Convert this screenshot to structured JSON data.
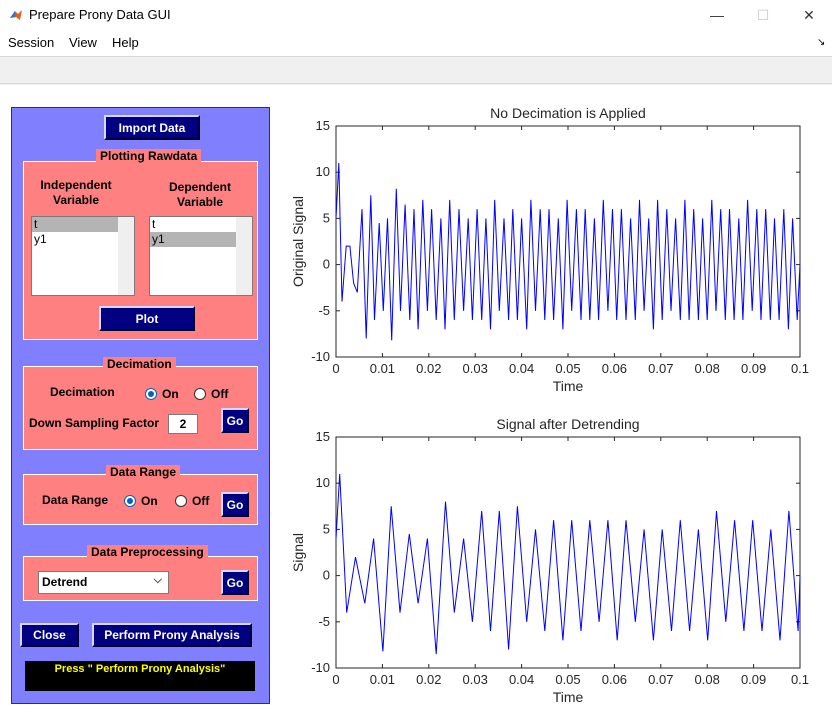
{
  "window": {
    "title": "Prepare Prony Data GUI",
    "minimize_glyph": "—",
    "maximize_glyph": "☐",
    "close_glyph": "✕",
    "dock_glyph": "↘"
  },
  "menu": [
    "Session",
    "View",
    "Help"
  ],
  "import_button": "Import Data",
  "plotting": {
    "title": "Plotting Rawdata",
    "independent_label_1": "Independent",
    "independent_label_2": "Variable",
    "dependent_label_1": "Dependent",
    "dependent_label_2": "Variable",
    "independent_list": [
      "t",
      "y1"
    ],
    "dependent_list": [
      "t",
      "y1"
    ],
    "independent_selected": "t",
    "dependent_selected": "y1",
    "plot_button": "Plot"
  },
  "decimation": {
    "title": "Decimation",
    "label": "Decimation",
    "on_label": "On",
    "off_label": "Off",
    "selected": "On",
    "factor_label": "Down Sampling Factor",
    "factor_value": "2",
    "go_button": "Go"
  },
  "data_range": {
    "title": "Data Range",
    "label": "Data Range",
    "on_label": "On",
    "off_label": "Off",
    "selected": "On",
    "go_button": "Go"
  },
  "preprocessing": {
    "title": "Data Preprocessing",
    "method": "Detrend",
    "go_button": "Go"
  },
  "close_button": "Close",
  "prony_button": "Perform Prony  Analysis",
  "status_message": "Press \" Perform Prony Analysis\"",
  "colors": {
    "panel": "#8080ff",
    "group": "#ff8080",
    "button": "#000080",
    "line": "#0000ff",
    "status_text": "#ffff00"
  },
  "chart_data": [
    {
      "type": "line",
      "title": "No Decimation is Applied",
      "xlabel": "Time",
      "ylabel": "Original Signal",
      "xlim": [
        0,
        0.1
      ],
      "ylim": [
        -10,
        15
      ],
      "xticks": [
        "0",
        "0.01",
        "0.02",
        "0.03",
        "0.04",
        "0.05",
        "0.06",
        "0.07",
        "0.08",
        "0.09",
        "0.1"
      ],
      "yticks": [
        "-10",
        "-5",
        "0",
        "5",
        "10",
        "15"
      ],
      "grid": false,
      "x": [
        0,
        0.0006,
        0.0013,
        0.0022,
        0.003,
        0.0038,
        0.0046,
        0.0056,
        0.0065,
        0.0075,
        0.0083,
        0.0093,
        0.0102,
        0.0111,
        0.012,
        0.013,
        0.0139,
        0.0149,
        0.0159,
        0.0168,
        0.0177,
        0.0187,
        0.0197,
        0.0206,
        0.0216,
        0.0226,
        0.0235,
        0.0245,
        0.0255,
        0.0265,
        0.0275,
        0.0285,
        0.0294,
        0.0304,
        0.0314,
        0.0323,
        0.0333,
        0.0342,
        0.0352,
        0.0362,
        0.0372,
        0.0381,
        0.0391,
        0.04,
        0.0411,
        0.042,
        0.043,
        0.044,
        0.045,
        0.0459,
        0.0469,
        0.0479,
        0.0489,
        0.0498,
        0.0508,
        0.0518,
        0.0528,
        0.0537,
        0.0547,
        0.0557,
        0.0566,
        0.0576,
        0.0586,
        0.0596,
        0.0605,
        0.0615,
        0.0625,
        0.0635,
        0.0645,
        0.0654,
        0.0664,
        0.0674,
        0.0684,
        0.0693,
        0.0703,
        0.0713,
        0.0722,
        0.0732,
        0.0742,
        0.0752,
        0.0761,
        0.0771,
        0.0781,
        0.079,
        0.08,
        0.081,
        0.0819,
        0.0829,
        0.0839,
        0.0848,
        0.0858,
        0.0868,
        0.0877,
        0.0887,
        0.0897,
        0.0907,
        0.0916,
        0.0926,
        0.0936,
        0.0945,
        0.0955,
        0.0965,
        0.0975,
        0.0984,
        0.0994,
        0.1
      ],
      "y": [
        5,
        11,
        -4,
        2,
        2,
        -2,
        -3,
        6,
        -8,
        7.5,
        -6,
        4.5,
        -5,
        5,
        -8.2,
        8.2,
        -5,
        6.5,
        -6,
        6,
        -7,
        7,
        -5,
        6,
        -6,
        5,
        -7,
        7,
        -6,
        6,
        -5,
        5,
        -6,
        6,
        -6,
        5,
        -7,
        7,
        -5,
        5,
        -6,
        6,
        -6,
        5,
        -7,
        7,
        -5,
        6,
        -6,
        6,
        -6,
        5,
        -7,
        7,
        -5,
        6,
        -6,
        6,
        -6,
        5,
        -6,
        7,
        -5,
        6,
        -6,
        6,
        -6,
        5,
        -6,
        7,
        -5,
        5,
        -7,
        7,
        -6,
        6,
        -5,
        5,
        -6,
        7,
        -6,
        6,
        -6,
        5,
        -6,
        7,
        -5,
        6,
        -6,
        6,
        -6,
        5,
        -6,
        7,
        -5,
        6,
        -6,
        6,
        -6,
        5,
        -6,
        6,
        -7,
        5,
        -6,
        0
      ]
    },
    {
      "type": "line",
      "title": "Signal after Detrending",
      "xlabel": "Time",
      "ylabel": "Signal",
      "xlim": [
        0,
        0.1
      ],
      "ylim": [
        -10,
        15
      ],
      "xticks": [
        "0",
        "0.01",
        "0.02",
        "0.03",
        "0.04",
        "0.05",
        "0.06",
        "0.07",
        "0.08",
        "0.09",
        "0.1"
      ],
      "yticks": [
        "-10",
        "-5",
        "0",
        "5",
        "10",
        "15"
      ],
      "grid": false,
      "x": [
        0,
        0.0008,
        0.0023,
        0.0042,
        0.0062,
        0.0081,
        0.0101,
        0.0119,
        0.0138,
        0.0158,
        0.0177,
        0.0197,
        0.0216,
        0.0236,
        0.0255,
        0.0275,
        0.0294,
        0.0314,
        0.0333,
        0.0352,
        0.0372,
        0.0391,
        0.0411,
        0.043,
        0.045,
        0.0469,
        0.0489,
        0.0508,
        0.0528,
        0.0547,
        0.0567,
        0.0586,
        0.0606,
        0.0625,
        0.0645,
        0.0664,
        0.0684,
        0.0703,
        0.0723,
        0.0742,
        0.0762,
        0.0781,
        0.0801,
        0.082,
        0.084,
        0.0859,
        0.0879,
        0.0898,
        0.0918,
        0.0937,
        0.0957,
        0.0976,
        0.0996,
        0.1
      ],
      "y": [
        4,
        11,
        -4,
        2,
        -3,
        4,
        -8.2,
        7.5,
        -4,
        4.5,
        -3,
        4,
        -8.5,
        8,
        -4,
        4,
        -5,
        7,
        -6,
        7,
        -8,
        7.5,
        -5,
        5,
        -6,
        6,
        -7,
        6,
        -6,
        6,
        -5,
        6,
        -7,
        6,
        -5,
        5,
        -7,
        5,
        -6,
        6,
        -6,
        5,
        -7,
        7,
        -5,
        6,
        -6,
        6,
        -6,
        5,
        -7,
        7,
        -6,
        0
      ]
    }
  ]
}
